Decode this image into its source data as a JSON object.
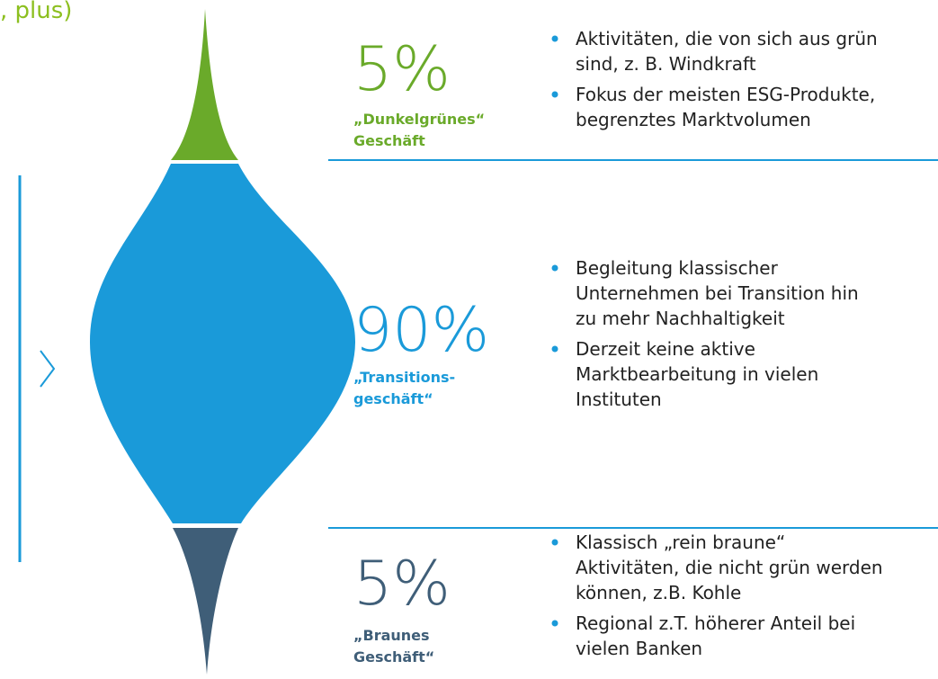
{
  "header": {
    "fragment": ", plus)"
  },
  "sections": [
    {
      "percent": "5%",
      "label": [
        "„Dunkelgrünes“",
        "Geschäft"
      ],
      "bullets": [
        [
          "Aktivitäten, die von sich aus grün",
          "sind, z. B. Windkraft"
        ],
        [
          "Fokus der meisten ESG-Produkte,",
          "begrenztes Marktvolumen"
        ]
      ]
    },
    {
      "percent": "90%",
      "label": [
        "„Transitions-",
        "geschäft“"
      ],
      "bullets": [
        [
          "Begleitung klassischer",
          "Unternehmen bei Transition hin",
          "zu mehr Nachhaltigkeit"
        ],
        [
          "Derzeit keine aktive",
          "Marktbearbeitung in vielen",
          "Instituten"
        ]
      ]
    },
    {
      "percent": "5%",
      "label": [
        "„Braunes",
        "Geschäft“"
      ],
      "bullets": [
        [
          "Klassisch „rein braune“",
          "Aktivitäten, die nicht grün werden",
          "können, z.B. Kohle"
        ],
        [
          "Regional z.T. höherer Anteil bei",
          "vielen Banken"
        ]
      ]
    }
  ]
}
